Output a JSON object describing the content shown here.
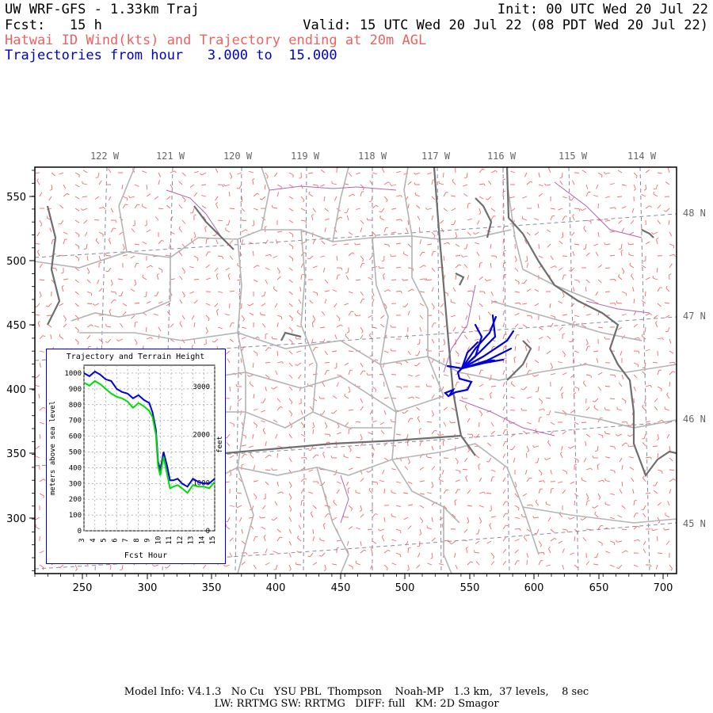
{
  "header": {
    "model_title": "UW WRF-GFS - 1.33km Traj",
    "init": "Init: 00 UTC Wed 20 Jul 22",
    "fcst": "Fcst:   15 h",
    "valid": "Valid: 15 UTC Wed 20 Jul 22 (08 PDT Wed 20 Jul 22)",
    "field_title": "Hatwai ID Wind(kts) and Trajectory ending at 20m AGL",
    "traj_range": "Trajectories from hour   3.000 to  15.000"
  },
  "map": {
    "lon_labels": [
      "122 W",
      "121 W",
      "120 W",
      "119 W",
      "118 W",
      "117 W",
      "116 W",
      "115 W",
      "114 W"
    ],
    "lat_labels": [
      "48 N",
      "47 N",
      "46 N",
      "45 N"
    ],
    "x_ticks": [
      "250",
      "300",
      "350",
      "400",
      "450",
      "500",
      "550",
      "600",
      "650",
      "700"
    ],
    "y_ticks": [
      "550",
      "500",
      "450",
      "400",
      "350",
      "300"
    ],
    "colors": {
      "wind_barbs": "#f06a6a",
      "county_lines": "#b4b4b4",
      "state_lines": "#6e6e6e",
      "graticule": "#8a8aa0",
      "rivers": "#b464b4",
      "trajectory": "#0000dd"
    }
  },
  "inset": {
    "title": "Trajectory and Terrain Height",
    "ylabel_left": "meters above sea level",
    "ylabel_right": "feet",
    "xlabel": "Fcst Hour",
    "y_ticks_m": [
      "1000",
      "900",
      "800",
      "700",
      "600",
      "500",
      "400",
      "300",
      "200",
      "100",
      "0"
    ],
    "y_ticks_ft": [
      "3000",
      "2000",
      "1000",
      "0"
    ],
    "x_ticks": [
      "3",
      "4",
      "5",
      "6",
      "7",
      "8",
      "9",
      "10",
      "11",
      "12",
      "13",
      "14",
      "15"
    ]
  },
  "chart_data": {
    "type": "line",
    "title": "Trajectory and Terrain Height",
    "xlabel": "Fcst Hour",
    "ylabel": "meters above sea level",
    "xlim": [
      3,
      15
    ],
    "ylim": [
      0,
      1050
    ],
    "grid": true,
    "series": [
      {
        "color": "#0000dd",
        "x": [
          3.0,
          3.5,
          4.0,
          4.5,
          5.0,
          5.5,
          6.0,
          6.5,
          7.0,
          7.5,
          8.0,
          8.5,
          9.0,
          9.3,
          9.6,
          9.8,
          10.0,
          10.3,
          10.6,
          10.9,
          11.2,
          11.6,
          12.0,
          12.5,
          13.0,
          13.5,
          14.0,
          14.5,
          15.0
        ],
        "y": [
          1000,
          980,
          1010,
          990,
          960,
          950,
          900,
          880,
          870,
          840,
          860,
          830,
          810,
          750,
          640,
          440,
          380,
          500,
          420,
          320,
          320,
          330,
          300,
          280,
          330,
          310,
          300,
          300,
          330
        ]
      },
      {
        "color": "#00dd00",
        "x": [
          3.0,
          3.5,
          4.0,
          4.5,
          5.0,
          5.5,
          6.0,
          6.5,
          7.0,
          7.5,
          8.0,
          8.5,
          9.0,
          9.3,
          9.6,
          9.8,
          10.0,
          10.3,
          10.6,
          10.9,
          11.2,
          11.6,
          12.0,
          12.5,
          13.0,
          13.5,
          14.0,
          14.5,
          15.0
        ],
        "y": [
          940,
          920,
          950,
          930,
          900,
          870,
          850,
          840,
          820,
          780,
          810,
          790,
          760,
          720,
          610,
          410,
          350,
          470,
          370,
          270,
          280,
          290,
          270,
          240,
          290,
          280,
          280,
          270,
          310
        ]
      }
    ]
  },
  "footer": {
    "line1": "Model Info: V4.1.3   No Cu   YSU PBL  Thompson    Noah-MP   1.3 km,  37 levels,    8 sec",
    "line2": "LW: RRTMG SW: RRTMG   DIFF: full   KM: 2D Smagor"
  }
}
